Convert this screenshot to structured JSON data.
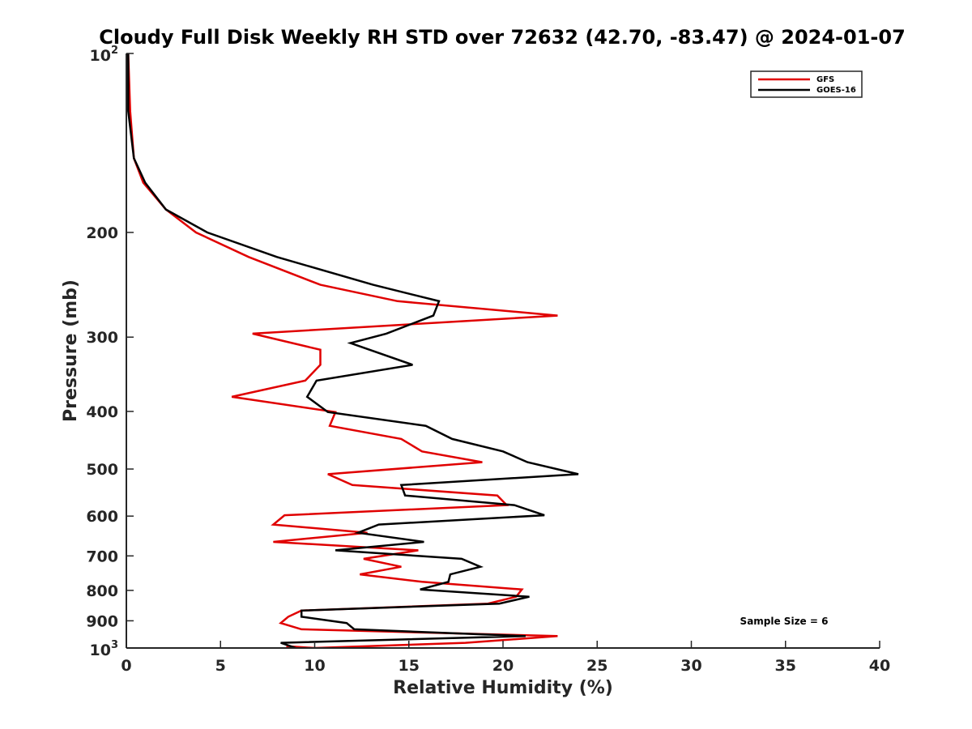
{
  "chart_data": {
    "type": "line",
    "title": "Cloudy Full Disk Weekly RH STD over 72632 (42.70, -83.47) @ 2024-01-07",
    "xlabel": "Relative Humidity (%)",
    "ylabel": "Pressure (mb)",
    "xlim": [
      0,
      40
    ],
    "ylim": [
      100,
      1000
    ],
    "y_scale": "log",
    "y_reversed": true,
    "x_ticks": [
      "0",
      "5",
      "10",
      "15",
      "20",
      "25",
      "30",
      "35",
      "40"
    ],
    "y_ticks": [
      {
        "value": 100,
        "base": "10",
        "exp": "2"
      },
      {
        "value": 200,
        "label": "200"
      },
      {
        "value": 300,
        "label": "300"
      },
      {
        "value": 400,
        "label": "400"
      },
      {
        "value": 500,
        "label": "500"
      },
      {
        "value": 600,
        "label": "600"
      },
      {
        "value": 700,
        "label": "700"
      },
      {
        "value": 800,
        "label": "800"
      },
      {
        "value": 900,
        "label": "900"
      },
      {
        "value": 1000,
        "base": "10",
        "exp": "3"
      }
    ],
    "grid": false,
    "legend_position": "top-right",
    "annotation": "Sample Size = 6",
    "series": [
      {
        "name": "GFS",
        "color": "#e00000",
        "points": [
          [
            0.1,
            100
          ],
          [
            0.2,
            125
          ],
          [
            0.4,
            150
          ],
          [
            0.9,
            165
          ],
          [
            2.1,
            183
          ],
          [
            3.7,
            200
          ],
          [
            6.5,
            220
          ],
          [
            10.3,
            245
          ],
          [
            14.4,
            261
          ],
          [
            22.9,
            276
          ],
          [
            6.7,
            296
          ],
          [
            10.3,
            315
          ],
          [
            10.3,
            334
          ],
          [
            9.5,
            355
          ],
          [
            5.6,
            378
          ],
          [
            11.1,
            401
          ],
          [
            10.8,
            423
          ],
          [
            14.6,
            445
          ],
          [
            15.7,
            467
          ],
          [
            18.9,
            487
          ],
          [
            10.7,
            510
          ],
          [
            12.0,
            532
          ],
          [
            19.7,
            554
          ],
          [
            20.2,
            575
          ],
          [
            8.4,
            598
          ],
          [
            7.8,
            620
          ],
          [
            12.8,
            640
          ],
          [
            7.8,
            663
          ],
          [
            15.5,
            685
          ],
          [
            12.6,
            708
          ],
          [
            14.6,
            730
          ],
          [
            12.4,
            752
          ],
          [
            15.7,
            774
          ],
          [
            21.0,
            797
          ],
          [
            20.7,
            820
          ],
          [
            19.2,
            842
          ],
          [
            9.3,
            865
          ],
          [
            8.6,
            886
          ],
          [
            8.2,
            908
          ],
          [
            9.3,
            930
          ],
          [
            22.9,
            955
          ],
          [
            18.0,
            980
          ],
          [
            10.0,
            1000
          ],
          [
            8.5,
            993
          ],
          [
            10.4,
            1017
          ]
        ]
      },
      {
        "name": "GOES-16",
        "color": "#000000",
        "points": [
          [
            0.1,
            100
          ],
          [
            0.1,
            125
          ],
          [
            0.4,
            150
          ],
          [
            1.0,
            165
          ],
          [
            2.1,
            183
          ],
          [
            4.3,
            200
          ],
          [
            8.0,
            220
          ],
          [
            13.1,
            245
          ],
          [
            16.6,
            261
          ],
          [
            16.3,
            276
          ],
          [
            13.8,
            296
          ],
          [
            11.9,
            307
          ],
          [
            15.2,
            334
          ],
          [
            10.1,
            355
          ],
          [
            9.6,
            378
          ],
          [
            10.7,
            401
          ],
          [
            15.9,
            423
          ],
          [
            17.3,
            445
          ],
          [
            20.0,
            467
          ],
          [
            21.3,
            487
          ],
          [
            24.0,
            510
          ],
          [
            14.6,
            532
          ],
          [
            14.8,
            554
          ],
          [
            20.6,
            575
          ],
          [
            22.2,
            598
          ],
          [
            13.4,
            620
          ],
          [
            12.3,
            640
          ],
          [
            15.8,
            663
          ],
          [
            11.1,
            685
          ],
          [
            17.8,
            708
          ],
          [
            18.8,
            730
          ],
          [
            17.2,
            752
          ],
          [
            17.1,
            774
          ],
          [
            15.6,
            797
          ],
          [
            21.4,
            820
          ],
          [
            19.8,
            842
          ],
          [
            9.3,
            865
          ],
          [
            9.3,
            886
          ],
          [
            11.7,
            908
          ],
          [
            12.1,
            930
          ],
          [
            21.2,
            955
          ],
          [
            8.2,
            980
          ],
          [
            9.0,
            1000
          ]
        ]
      }
    ]
  }
}
